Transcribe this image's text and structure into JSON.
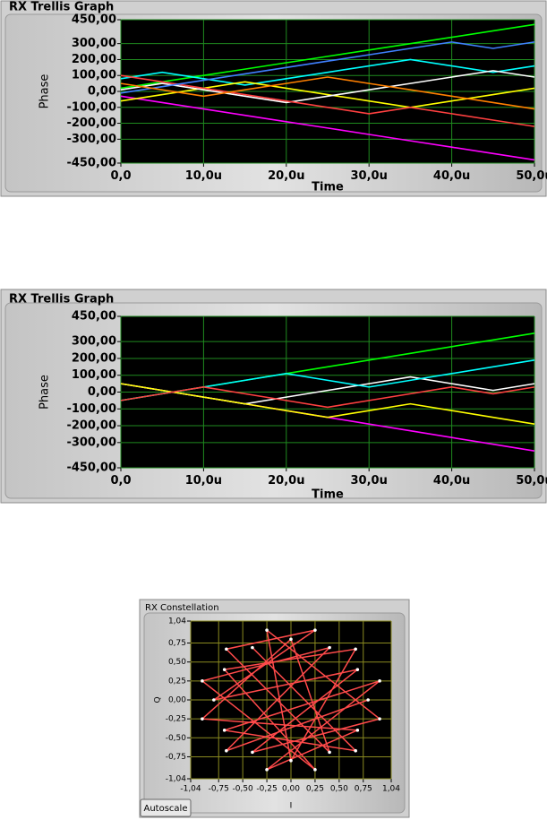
{
  "chart_data": [
    {
      "type": "line",
      "title": "RX Trellis Graph",
      "x_label": "Time",
      "y_label": "Phase",
      "x": [
        0,
        5,
        10,
        15,
        20,
        25,
        30,
        35,
        40,
        45,
        50
      ],
      "series": [
        {
          "color": "#00ff00",
          "values": [
            20,
            60,
            100,
            140,
            180,
            220,
            260,
            300,
            340,
            380,
            420
          ]
        },
        {
          "color": "#ff00ff",
          "values": [
            -30,
            -70,
            -110,
            -150,
            -190,
            -230,
            -270,
            -310,
            -350,
            -390,
            -430
          ]
        },
        {
          "color": "#00ffff",
          "values": [
            80,
            120,
            80,
            40,
            80,
            120,
            160,
            200,
            160,
            120,
            160
          ]
        },
        {
          "color": "#ffff00",
          "values": [
            -60,
            -20,
            20,
            60,
            20,
            -20,
            -60,
            -100,
            -60,
            -20,
            20
          ]
        },
        {
          "color": "#ffffff",
          "values": [
            10,
            50,
            10,
            -30,
            -70,
            -30,
            10,
            50,
            90,
            130,
            90
          ]
        },
        {
          "color": "#ff4040",
          "values": [
            100,
            60,
            20,
            -20,
            -60,
            -100,
            -140,
            -100,
            -140,
            -180,
            -220
          ]
        },
        {
          "color": "#4080ff",
          "values": [
            -10,
            30,
            70,
            110,
            150,
            190,
            230,
            270,
            310,
            270,
            310
          ]
        },
        {
          "color": "#ff8000",
          "values": [
            50,
            10,
            -30,
            10,
            50,
            90,
            50,
            10,
            -30,
            -70,
            -110
          ]
        }
      ],
      "xlim": [
        0,
        50
      ],
      "ylim": [
        -450,
        450
      ],
      "xticks": [
        {
          "value": 0,
          "label": "0,0"
        },
        {
          "value": 10,
          "label": "10,0u"
        },
        {
          "value": 20,
          "label": "20,0u"
        },
        {
          "value": 30,
          "label": "30,0u"
        },
        {
          "value": 40,
          "label": "40,0u"
        },
        {
          "value": 50,
          "label": "50,0u"
        }
      ],
      "yticks": [
        {
          "value": -450,
          "label": "-450,00"
        },
        {
          "value": -300,
          "label": "-300,00"
        },
        {
          "value": -200,
          "label": "-200,00"
        },
        {
          "value": -100,
          "label": "-100,00"
        },
        {
          "value": 0,
          "label": "0,00"
        },
        {
          "value": 100,
          "label": "100,00"
        },
        {
          "value": 200,
          "label": "200,00"
        },
        {
          "value": 300,
          "label": "300,00"
        },
        {
          "value": 450,
          "label": "450,00"
        }
      ],
      "grid": true,
      "grid_color": "#1f8a1f"
    },
    {
      "type": "line",
      "title": "RX Trellis Graph",
      "x_label": "Time",
      "y_label": "Phase",
      "x": [
        0,
        5,
        10,
        15,
        20,
        25,
        30,
        35,
        40,
        45,
        50
      ],
      "series": [
        {
          "color": "#00ff00",
          "values": [
            -50,
            -10,
            30,
            70,
            110,
            150,
            190,
            230,
            270,
            310,
            350
          ]
        },
        {
          "color": "#ff00ff",
          "values": [
            50,
            10,
            -30,
            -70,
            -110,
            -150,
            -190,
            -230,
            -270,
            -310,
            -350
          ]
        },
        {
          "color": "#ffffff",
          "values": [
            50,
            10,
            -30,
            -70,
            -30,
            10,
            50,
            90,
            50,
            10,
            50
          ]
        },
        {
          "color": "#00ffff",
          "values": [
            -50,
            -10,
            30,
            70,
            110,
            70,
            30,
            70,
            110,
            150,
            190
          ]
        },
        {
          "color": "#ffff00",
          "values": [
            50,
            10,
            -30,
            -70,
            -110,
            -150,
            -110,
            -70,
            -110,
            -150,
            -190
          ]
        },
        {
          "color": "#ff4040",
          "values": [
            -50,
            -10,
            30,
            -10,
            -50,
            -90,
            -50,
            -10,
            30,
            -10,
            30
          ]
        }
      ],
      "xlim": [
        0,
        50
      ],
      "ylim": [
        -450,
        450
      ],
      "xticks": [
        {
          "value": 0,
          "label": "0,0"
        },
        {
          "value": 10,
          "label": "10,0u"
        },
        {
          "value": 20,
          "label": "20,0u"
        },
        {
          "value": 30,
          "label": "30,0u"
        },
        {
          "value": 40,
          "label": "40,0u"
        },
        {
          "value": 50,
          "label": "50,0u"
        }
      ],
      "yticks": [
        {
          "value": -450,
          "label": "-450,00"
        },
        {
          "value": -300,
          "label": "-300,00"
        },
        {
          "value": -200,
          "label": "-200,00"
        },
        {
          "value": -100,
          "label": "-100,00"
        },
        {
          "value": 0,
          "label": "0,00"
        },
        {
          "value": 100,
          "label": "100,00"
        },
        {
          "value": 200,
          "label": "200,00"
        },
        {
          "value": 300,
          "label": "300,00"
        },
        {
          "value": 450,
          "label": "450,00"
        }
      ],
      "grid": true,
      "grid_color": "#1f8a1f"
    },
    {
      "type": "scatter",
      "title": "RX Constellation",
      "x_label": "I",
      "y_label": "Q",
      "x": [
        0.8,
        -0.67,
        0.4,
        -0.92,
        0.25,
        -0.69,
        0.67,
        0,
        -0.25,
        0.92,
        -0.4,
        0.69,
        -0.8,
        0.25,
        -0.67,
        0.4,
        0,
        -0.92,
        0.69,
        -0.25,
        0.92,
        -0.69,
        0.67,
        -0.4
      ],
      "y": [
        0,
        -0.67,
        0.69,
        0.25,
        -0.92,
        0.4,
        0.67,
        -0.8,
        0.92,
        -0.25,
        -0.69,
        0.4,
        0,
        0.92,
        0.67,
        -0.69,
        0.8,
        -0.25,
        -0.4,
        -0.92,
        0.25,
        -0.4,
        -0.67,
        0.69
      ],
      "color": "#ffffff",
      "line_color": "#ff4a4a",
      "xlim": [
        -1.04,
        1.04
      ],
      "ylim": [
        -1.04,
        1.04
      ],
      "xticks": [
        {
          "value": -1.04,
          "label": "-1,04"
        },
        {
          "value": -0.75,
          "label": "-0,75"
        },
        {
          "value": -0.5,
          "label": "-0,50"
        },
        {
          "value": -0.25,
          "label": "-0,25"
        },
        {
          "value": 0,
          "label": "0,00"
        },
        {
          "value": 0.25,
          "label": "0,25"
        },
        {
          "value": 0.5,
          "label": "0,50"
        },
        {
          "value": 0.75,
          "label": "0,75"
        },
        {
          "value": 1.04,
          "label": "1,04"
        }
      ],
      "yticks": [
        {
          "value": -1.04,
          "label": "-1,04"
        },
        {
          "value": -0.75,
          "label": "-0,75"
        },
        {
          "value": -0.5,
          "label": "-0,50"
        },
        {
          "value": -0.25,
          "label": "-0,25"
        },
        {
          "value": 0,
          "label": "0,00"
        },
        {
          "value": 0.25,
          "label": "0,25"
        },
        {
          "value": 0.5,
          "label": "0,50"
        },
        {
          "value": 0.75,
          "label": "0,75"
        },
        {
          "value": 1.04,
          "label": "1,04"
        }
      ],
      "grid": true,
      "grid_color": "#8a8a20"
    }
  ],
  "controls": {
    "autoscale": "Autoscale"
  }
}
